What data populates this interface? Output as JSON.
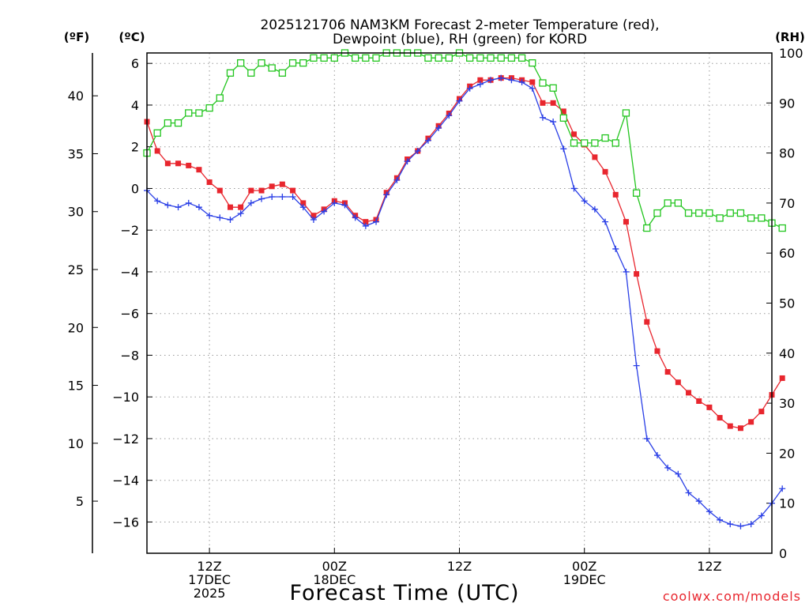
{
  "chart_data": {
    "type": "line",
    "title_line1": "2025121706 NAM3KM Forecast 2-meter Temperature (red),",
    "title_line2": "Dewpoint (blue), RH (green) for KORD",
    "xlabel": "Forecast Time (UTC)",
    "credit": "coolwx.com/models",
    "unit_f": "(ºF)",
    "unit_c": "(ºC)",
    "unit_rh": "(RH)",
    "x_range_hours": [
      0,
      60
    ],
    "c_range": [
      -17.5,
      6.5
    ],
    "rh_range": [
      0,
      100
    ],
    "c_ticks": [
      "6",
      "4",
      "2",
      "0",
      "−2",
      "−4",
      "−6",
      "−8",
      "−10",
      "−12",
      "−14",
      "−16"
    ],
    "c_tick_values": [
      6,
      4,
      2,
      0,
      -2,
      -4,
      -6,
      -8,
      -10,
      -12,
      -14,
      -16
    ],
    "f_ticks": [
      "40",
      "35",
      "30",
      "25",
      "20",
      "15",
      "10",
      "5"
    ],
    "f_tick_values": [
      40,
      35,
      30,
      25,
      20,
      15,
      10,
      5
    ],
    "rh_ticks": [
      "100",
      "90",
      "80",
      "70",
      "60",
      "50",
      "40",
      "30",
      "20",
      "10",
      "0"
    ],
    "rh_tick_values": [
      100,
      90,
      80,
      70,
      60,
      50,
      40,
      30,
      20,
      10,
      0
    ],
    "x_ticks": [
      {
        "hour": 6,
        "label1": "12Z",
        "label2": "17DEC",
        "label3": "2025"
      },
      {
        "hour": 18,
        "label1": "00Z",
        "label2": "18DEC",
        "label3": ""
      },
      {
        "hour": 30,
        "label1": "12Z",
        "label2": "",
        "label3": ""
      },
      {
        "hour": 42,
        "label1": "00Z",
        "label2": "19DEC",
        "label3": ""
      },
      {
        "hour": 54,
        "label1": "12Z",
        "label2": "",
        "label3": ""
      }
    ],
    "series": [
      {
        "name": "Temperature",
        "color": "#e8262e",
        "marker": "filled-square",
        "axis": "c",
        "values": [
          3.2,
          1.8,
          1.2,
          1.2,
          1.1,
          0.9,
          0.3,
          -0.1,
          -0.9,
          -0.9,
          -0.1,
          -0.1,
          0.1,
          0.2,
          -0.1,
          -0.7,
          -1.3,
          -1.0,
          -0.6,
          -0.7,
          -1.3,
          -1.6,
          -1.5,
          -0.2,
          0.5,
          1.4,
          1.8,
          2.4,
          3.0,
          3.6,
          4.3,
          4.9,
          5.2,
          5.2,
          5.3,
          5.3,
          5.2,
          5.1,
          4.1,
          4.1,
          3.7,
          2.6,
          2.1,
          1.5,
          0.8,
          -0.3,
          -1.6,
          -4.1,
          -6.4,
          -7.8,
          -8.8,
          -9.3,
          -9.8,
          -10.2,
          -10.5,
          -11.0,
          -11.4,
          -11.5,
          -11.2,
          -10.7,
          -9.9,
          -9.1
        ]
      },
      {
        "name": "Dewpoint",
        "color": "#2a3fe6",
        "marker": "plus",
        "axis": "c",
        "values": [
          -0.1,
          -0.6,
          -0.8,
          -0.9,
          -0.7,
          -0.9,
          -1.3,
          -1.4,
          -1.5,
          -1.2,
          -0.7,
          -0.5,
          -0.4,
          -0.4,
          -0.4,
          -0.9,
          -1.5,
          -1.1,
          -0.7,
          -0.8,
          -1.4,
          -1.8,
          -1.6,
          -0.3,
          0.4,
          1.3,
          1.8,
          2.3,
          2.9,
          3.5,
          4.2,
          4.8,
          5.0,
          5.2,
          5.3,
          5.2,
          5.1,
          4.8,
          3.4,
          3.2,
          1.9,
          0.0,
          -0.6,
          -1.0,
          -1.6,
          -2.9,
          -4.0,
          -8.5,
          -12.0,
          -12.8,
          -13.4,
          -13.7,
          -14.6,
          -15.0,
          -15.5,
          -15.9,
          -16.1,
          -16.2,
          -16.1,
          -15.7,
          -15.1,
          -14.4
        ]
      },
      {
        "name": "RH",
        "color": "#22c51e",
        "marker": "open-square",
        "axis": "rh",
        "values": [
          80,
          84,
          86,
          86,
          88,
          88,
          89,
          91,
          96,
          98,
          96,
          98,
          97,
          96,
          98,
          98,
          99,
          99,
          99,
          100,
          99,
          99,
          99,
          100,
          100,
          100,
          100,
          99,
          99,
          99,
          100,
          99,
          99,
          99,
          99,
          99,
          99,
          98,
          94,
          93,
          87,
          82,
          82,
          82,
          83,
          82,
          88,
          72,
          65,
          68,
          70,
          70,
          68,
          68,
          68,
          67,
          68,
          68,
          67,
          67,
          66,
          65
        ]
      }
    ]
  }
}
